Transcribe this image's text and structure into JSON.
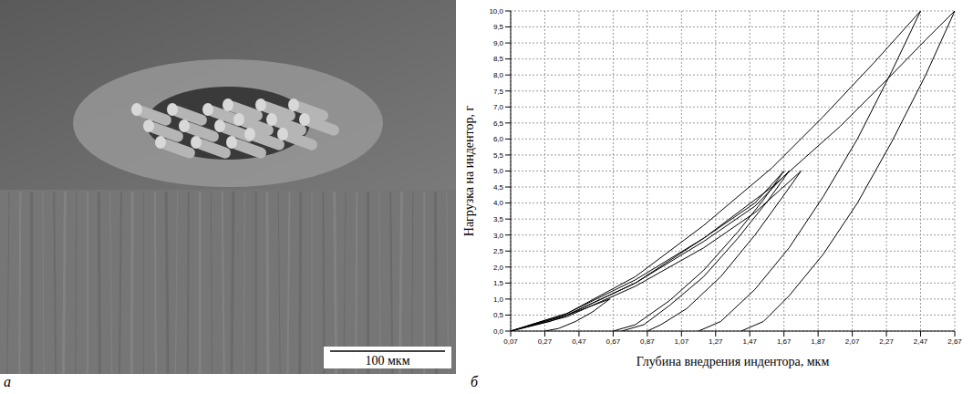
{
  "panel_a": {
    "label": "а",
    "scale_bar": "100 мкм"
  },
  "chart_data": {
    "type": "line",
    "panel_label": "б",
    "x_label": "Глубина внедрения индентора, мкм",
    "y_label": "Нагрузка на индентор, г",
    "xlim": [
      0.07,
      2.67
    ],
    "ylim": [
      0,
      10
    ],
    "xticks": [
      {
        "value": 0.07,
        "label": "0,07"
      },
      {
        "value": 0.27,
        "label": "0,27"
      },
      {
        "value": 0.47,
        "label": "0,47"
      },
      {
        "value": 0.67,
        "label": "0,67"
      },
      {
        "value": 0.87,
        "label": "0,87"
      },
      {
        "value": 1.07,
        "label": "1,07"
      },
      {
        "value": 1.27,
        "label": "1,27"
      },
      {
        "value": 1.47,
        "label": "1,47"
      },
      {
        "value": 1.67,
        "label": "1,67"
      },
      {
        "value": 1.87,
        "label": "1,87"
      },
      {
        "value": 2.07,
        "label": "2,07"
      },
      {
        "value": 2.27,
        "label": "2,27"
      },
      {
        "value": 2.47,
        "label": "2,47"
      },
      {
        "value": 2.67,
        "label": "2,67"
      }
    ],
    "yticks": [
      {
        "value": 0,
        "label": "0,0"
      },
      {
        "value": 0.5,
        "label": "0,5"
      },
      {
        "value": 1,
        "label": "1,0"
      },
      {
        "value": 1.5,
        "label": "1,5"
      },
      {
        "value": 2,
        "label": "2,0"
      },
      {
        "value": 2.5,
        "label": "2,5"
      },
      {
        "value": 3,
        "label": "3,0"
      },
      {
        "value": 3.5,
        "label": "3,5"
      },
      {
        "value": 4,
        "label": "4,0"
      },
      {
        "value": 4.5,
        "label": "4,5"
      },
      {
        "value": 5,
        "label": "5,0"
      },
      {
        "value": 5.5,
        "label": "5,5"
      },
      {
        "value": 6,
        "label": "6,0"
      },
      {
        "value": 6.5,
        "label": "6,5"
      },
      {
        "value": 7,
        "label": "7,0"
      },
      {
        "value": 7.5,
        "label": "7,5"
      },
      {
        "value": 8,
        "label": "8,0"
      },
      {
        "value": 8.5,
        "label": "8,5"
      },
      {
        "value": 9,
        "label": "9,0"
      },
      {
        "value": 9.5,
        "label": "9,5"
      },
      {
        "value": 10,
        "label": "10,0"
      }
    ],
    "grid": true,
    "series": [
      {
        "color": "#000000",
        "x": [
          0.07,
          0.4,
          0.8,
          1.2,
          1.6,
          1.9,
          2.2,
          2.47,
          2.3,
          2.1,
          1.9,
          1.7,
          1.5,
          1.3,
          1.17
        ],
        "values": [
          0,
          0.55,
          1.7,
          3.3,
          5.1,
          6.7,
          8.4,
          10,
          8.1,
          6.0,
          4.2,
          2.6,
          1.3,
          0.3,
          0
        ]
      },
      {
        "color": "#000000",
        "x": [
          0.07,
          0.4,
          0.8,
          1.2,
          1.6,
          2.0,
          2.3,
          2.5,
          2.67,
          2.5,
          2.3,
          2.1,
          1.9,
          1.7,
          1.55,
          1.42
        ],
        "values": [
          0,
          0.5,
          1.5,
          2.9,
          4.5,
          6.4,
          8.0,
          9.1,
          10,
          8.0,
          5.9,
          4.0,
          2.4,
          1.1,
          0.3,
          0
        ]
      },
      {
        "color": "#000000",
        "x": [
          0.07,
          0.4,
          0.8,
          1.2,
          1.5,
          1.67,
          1.55,
          1.4,
          1.2,
          1.0,
          0.8,
          0.67
        ],
        "values": [
          0,
          0.55,
          1.6,
          2.9,
          4.0,
          5.0,
          4.1,
          3.1,
          1.9,
          0.95,
          0.2,
          0
        ]
      },
      {
        "color": "#000000",
        "x": [
          0.07,
          0.4,
          0.8,
          1.2,
          1.5,
          1.7,
          1.58,
          1.4,
          1.2,
          1.0,
          0.85,
          0.72
        ],
        "values": [
          0,
          0.5,
          1.5,
          2.8,
          3.9,
          5.0,
          4.1,
          2.9,
          1.7,
          0.8,
          0.2,
          0
        ]
      },
      {
        "color": "#000000",
        "x": [
          0.07,
          0.4,
          0.8,
          1.2,
          1.5,
          1.77,
          1.65,
          1.5,
          1.3,
          1.1,
          0.95,
          0.87
        ],
        "values": [
          0,
          0.45,
          1.4,
          2.6,
          3.7,
          5.0,
          4.1,
          3.0,
          1.7,
          0.7,
          0.2,
          0
        ]
      },
      {
        "color": "#000000",
        "x": [
          0.07,
          0.3,
          0.5,
          0.65,
          0.55,
          0.45,
          0.35,
          0.27
        ],
        "values": [
          0,
          0.3,
          0.7,
          1.0,
          0.6,
          0.3,
          0.08,
          0
        ]
      }
    ]
  }
}
